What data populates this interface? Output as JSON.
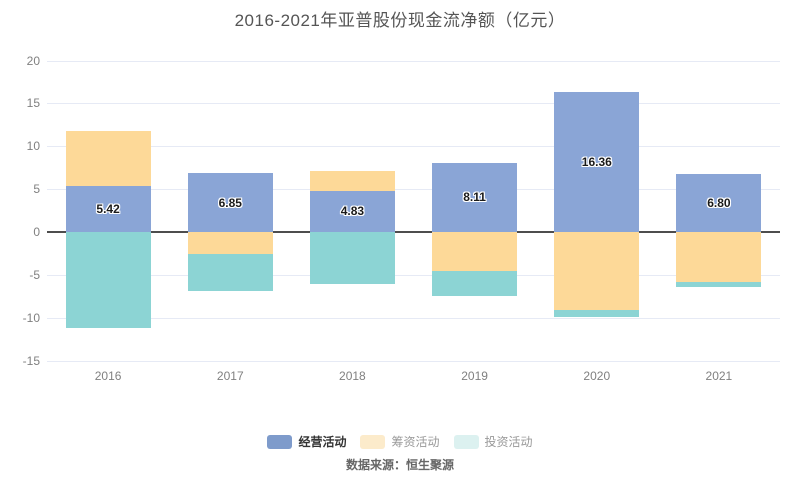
{
  "title": "2016-2021年亚普股份现金流净额（亿元）",
  "source": "数据来源：恒生聚源",
  "chart_data": {
    "type": "bar",
    "stacked": true,
    "title": "2016-2021年亚普股份现金流净额（亿元）",
    "categories": [
      "2016",
      "2017",
      "2018",
      "2019",
      "2020",
      "2021"
    ],
    "series": [
      {
        "name": "经营活动",
        "color": "#8AA5D6",
        "values": [
          5.42,
          6.85,
          4.83,
          8.11,
          16.36,
          6.8
        ],
        "labels": [
          "5.42",
          "6.85",
          "4.83",
          "8.11",
          "16.36",
          "6.80"
        ]
      },
      {
        "name": "筹资活动",
        "color": "#FDD998",
        "values": [
          6.36,
          -2.6,
          2.35,
          -4.6,
          -9.15,
          -5.85
        ]
      },
      {
        "name": "投资活动",
        "color": "#8CD4D4",
        "values": [
          -11.25,
          -4.3,
          -6.05,
          -2.9,
          -0.8,
          -0.6
        ]
      }
    ],
    "y_ticks": [
      20,
      15,
      10,
      5,
      0,
      -5,
      -10,
      -15
    ],
    "ylim": [
      -15,
      20
    ],
    "grid": true,
    "legend_position": "bottom",
    "legend_styles": [
      {
        "swatch": "#7E9BCB",
        "active": true
      },
      {
        "swatch": "#FCEBCB",
        "active": false
      },
      {
        "swatch": "#DCF1F0",
        "active": false
      }
    ]
  },
  "colors": {
    "grid": "#E6EAF5",
    "zero_line": "#4D4D4D",
    "axis_text": "#808080",
    "title_text": "#555555",
    "bar_label": "#1A1A1A",
    "source_text": "#666666"
  }
}
